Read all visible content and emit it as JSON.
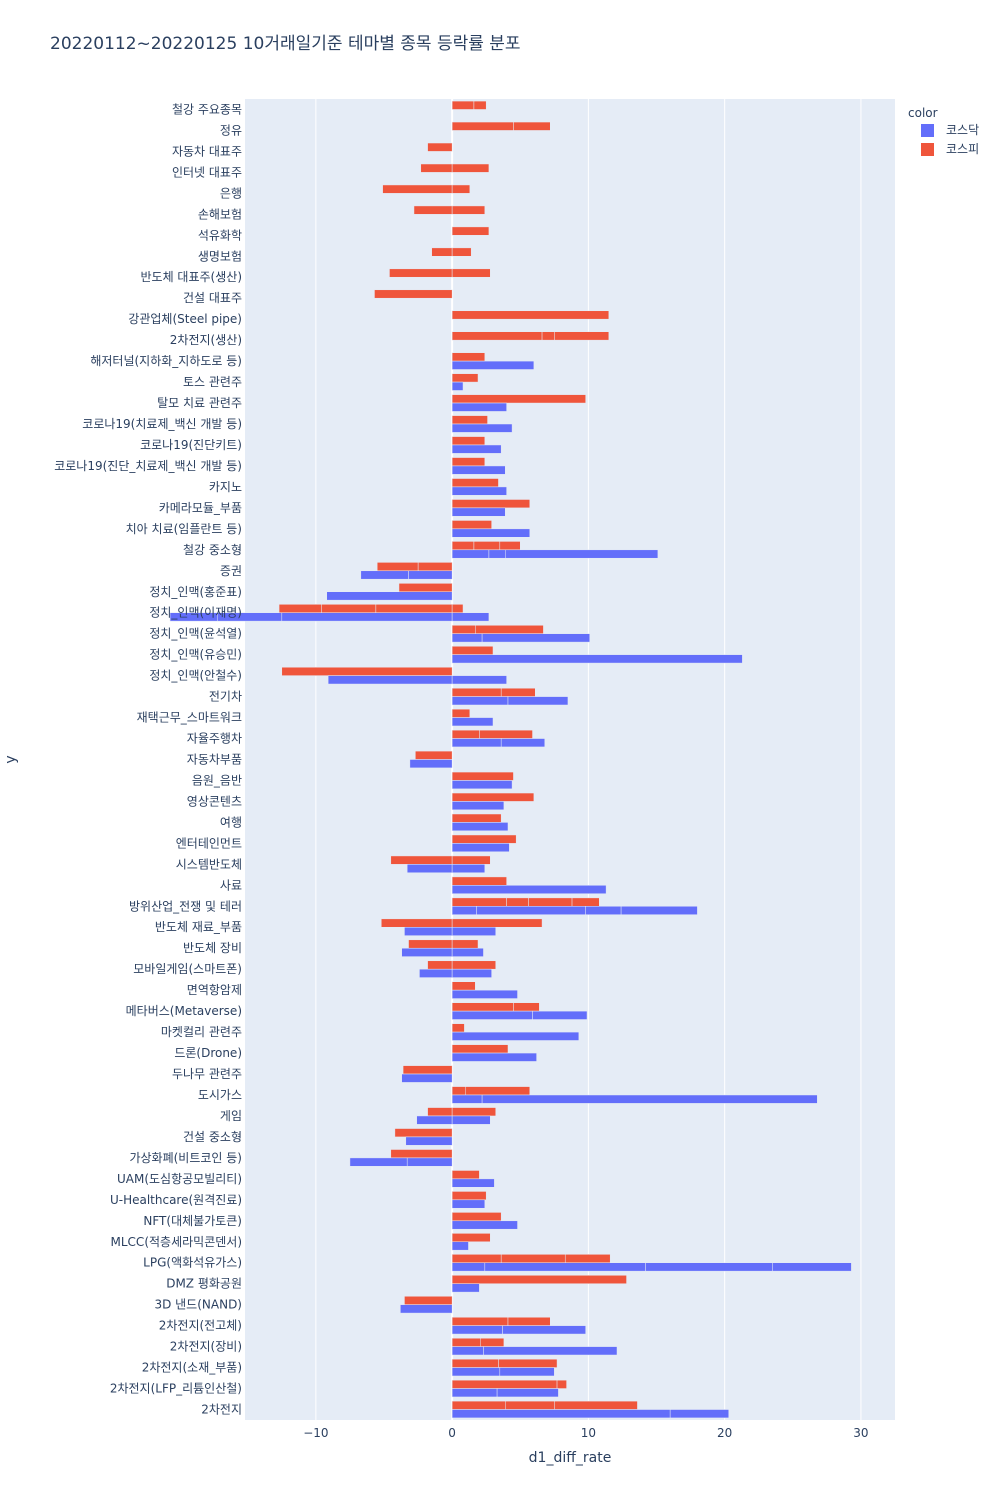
{
  "chart_data": {
    "type": "bar",
    "orientation": "horizontal",
    "barmode": "group",
    "title": "20220112~20220125 10거래일기준 테마별 종목 등락률 분포",
    "xlabel": "d1_diff_rate",
    "ylabel": "y",
    "xlim": [
      -15.2,
      32.5
    ],
    "xticks": [
      -10,
      0,
      10,
      20,
      30
    ],
    "xtick_labels": [
      "−10",
      "0",
      "10",
      "20",
      "30"
    ],
    "grid": true,
    "legend": {
      "title": "color",
      "position": "top-right"
    },
    "series": [
      {
        "name": "코스닥",
        "color": "#636efa"
      },
      {
        "name": "코스피",
        "color": "#ef553b"
      }
    ],
    "categories": [
      "철강 주요종목",
      "정유",
      "자동차 대표주",
      "인터넷 대표주",
      "은행",
      "손해보험",
      "석유화학",
      "생명보험",
      "반도체 대표주(생산)",
      "건설 대표주",
      "강관업체(Steel pipe)",
      "2차전지(생산)",
      "해저터널(지하화_지하도로 등)",
      "토스 관련주",
      "탈모 치료 관련주",
      "코로나19(치료제_백신 개발 등)",
      "코로나19(진단키트)",
      "코로나19(진단_치료제_백신 개발 등)",
      "카지노",
      "카메라모듈_부품",
      "치아 치료(임플란트 등)",
      "철강 중소형",
      "증권",
      "정치_인맥(홍준표)",
      "정치_인맥(이재명)",
      "정치_인맥(윤석열)",
      "정치_인맥(유승민)",
      "정치_인맥(안철수)",
      "전기차",
      "재택근무_스마트워크",
      "자율주행차",
      "자동차부품",
      "음원_음반",
      "영상콘텐츠",
      "여행",
      "엔터테인먼트",
      "시스템반도체",
      "사료",
      "방위산업_전쟁 및 테러",
      "반도체 재료_부품",
      "반도체 장비",
      "모바일게임(스마트폰)",
      "면역항암제",
      "메타버스(Metaverse)",
      "마켓컬리 관련주",
      "드론(Drone)",
      "두나무 관련주",
      "도시가스",
      "게임",
      "건설 중소형",
      "가상화폐(비트코인 등)",
      "UAM(도심항공모빌리티)",
      "U-Healthcare(원격진료)",
      "NFT(대체불가토큰)",
      "MLCC(적층세라믹콘덴서)",
      "LPG(액화석유가스)",
      "DMZ 평화공원",
      "3D 낸드(NAND)",
      "2차전지(전고체)",
      "2차전지(장비)",
      "2차전지(소재_부품)",
      "2차전지(LFP_리튬인산철)",
      "2차전지"
    ],
    "values_kospi": [
      [
        1.6,
        0.9
      ],
      [
        4.5,
        2.7
      ],
      [
        -1.8
      ],
      [
        -2.3,
        2.7
      ],
      [
        -5.1,
        1.3
      ],
      [
        -2.8,
        2.4
      ],
      [
        2.7
      ],
      [
        -1.5,
        1.4
      ],
      [
        -4.6,
        2.8
      ],
      [
        -5.7
      ],
      [
        11.5
      ],
      [
        6.6,
        0.9,
        4.0
      ],
      [
        2.4
      ],
      [
        1.9
      ],
      [
        9.8
      ],
      [
        2.6
      ],
      [
        2.4
      ],
      [
        2.4
      ],
      [
        3.4
      ],
      [
        5.7
      ],
      [
        2.9
      ],
      [
        1.6,
        1.9,
        1.5
      ],
      [
        -2.5,
        -3.0
      ],
      [
        -3.9
      ],
      [
        -5.6,
        -4.0,
        -3.1,
        0.8
      ],
      [
        1.7,
        5.0
      ],
      [
        3.0
      ],
      [
        -12.5
      ],
      [
        3.6,
        2.5
      ],
      [
        1.3
      ],
      [
        2.0,
        3.9
      ],
      [
        -2.7
      ],
      [
        4.5
      ],
      [
        6.0
      ],
      [
        3.6
      ],
      [
        4.7
      ],
      [
        -4.5,
        2.8
      ],
      [
        4.0
      ],
      [
        4.0,
        1.6,
        3.2,
        2.0
      ],
      [
        -5.2,
        6.6
      ],
      [
        -3.2,
        1.9
      ],
      [
        -1.8,
        3.2
      ],
      [
        1.7
      ],
      [
        4.5,
        1.9
      ],
      [
        0.9
      ],
      [
        4.1
      ],
      [
        -3.6
      ],
      [
        1.0,
        4.7
      ],
      [
        -1.8,
        3.2
      ],
      [
        -4.2
      ],
      [
        -4.5
      ],
      [
        2.0
      ],
      [
        2.5
      ],
      [
        3.6
      ],
      [
        2.8
      ],
      [
        3.6,
        4.7,
        3.3
      ],
      [
        12.8
      ],
      [
        -3.5
      ],
      [
        4.1,
        3.1
      ],
      [
        2.1,
        1.7
      ],
      [
        3.4,
        4.3
      ],
      [
        7.7,
        0.7
      ],
      [
        3.9,
        3.6,
        6.1
      ]
    ],
    "values_kosdaq": [
      [],
      [],
      [],
      [],
      [],
      [],
      [],
      [],
      [],
      [],
      [],
      [],
      [
        6.0
      ],
      [
        0.8
      ],
      [
        4.0
      ],
      [
        4.4
      ],
      [
        3.6
      ],
      [
        3.9
      ],
      [
        4.0
      ],
      [
        3.9
      ],
      [
        5.7
      ],
      [
        2.7,
        1.2,
        11.2
      ],
      [
        -3.2,
        -3.5
      ],
      [
        -9.2
      ],
      [
        -12.5,
        -4.7,
        -3.5,
        2.7
      ],
      [
        2.2,
        7.9
      ],
      [
        21.3
      ],
      [
        -9.1,
        4.0
      ],
      [
        4.1,
        4.4
      ],
      [
        3.0
      ],
      [
        3.6,
        3.2
      ],
      [
        -3.1
      ],
      [
        4.4
      ],
      [
        3.8
      ],
      [
        4.1
      ],
      [
        4.2
      ],
      [
        -3.3,
        2.4
      ],
      [
        11.3
      ],
      [
        1.8,
        8.0,
        2.6,
        5.6
      ],
      [
        -3.5,
        3.2
      ],
      [
        -3.7,
        2.3
      ],
      [
        -2.4,
        2.9
      ],
      [
        4.8
      ],
      [
        5.9,
        4.0
      ],
      [
        9.3
      ],
      [
        6.2
      ],
      [
        -3.7
      ],
      [
        2.2,
        24.6
      ],
      [
        -2.6,
        2.8
      ],
      [
        -3.4
      ],
      [
        -3.3,
        -4.2
      ],
      [
        3.1
      ],
      [
        2.4
      ],
      [
        4.8
      ],
      [
        1.2
      ],
      [
        2.4,
        11.8,
        9.3,
        5.8
      ],
      [
        2.0
      ],
      [
        -3.8
      ],
      [
        3.7,
        6.1
      ],
      [
        2.3,
        9.8
      ],
      [
        3.5,
        4.0
      ],
      [
        3.3,
        4.5
      ],
      [
        16.0,
        4.3
      ]
    ]
  }
}
